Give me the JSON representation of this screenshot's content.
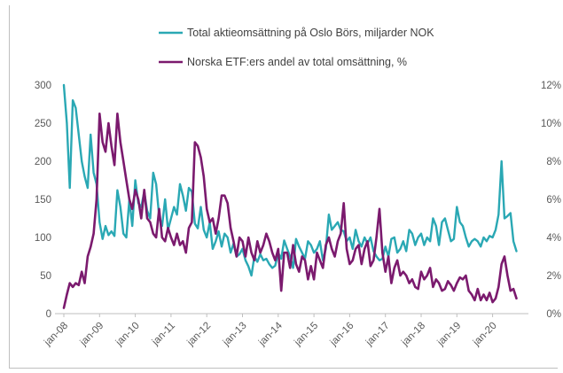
{
  "chart_data": {
    "type": "line",
    "title": "",
    "xlabel": "",
    "ylabel": "",
    "x_tick_labels": [
      "jan-08",
      "jan-09",
      "jan-10",
      "jan-11",
      "jan-12",
      "jan-13",
      "jan-14",
      "jan-15",
      "jan-16",
      "jan-17",
      "jan-18",
      "jan-19",
      "jan-20"
    ],
    "x_range": [
      "2008-01",
      "2020-08"
    ],
    "y_left": {
      "ticks": [
        "0",
        "50",
        "100",
        "150",
        "200",
        "250",
        "300"
      ],
      "ylim": [
        0,
        300
      ]
    },
    "y_right": {
      "ticks": [
        "0%",
        "2%",
        "4%",
        "6%",
        "8%",
        "10%",
        "12%"
      ],
      "ylim": [
        0,
        12
      ]
    },
    "grid": false,
    "legend_position": "top",
    "series": [
      {
        "name": "Total aktieomsättning på Oslo Börs, miljarder NOK",
        "axis": "left",
        "color": "#2aa8b4",
        "x_start": "2008-01",
        "values": [
          300,
          250,
          165,
          280,
          270,
          235,
          200,
          180,
          165,
          235,
          185,
          170,
          120,
          98,
          115,
          103,
          108,
          102,
          162,
          140,
          105,
          100,
          150,
          115,
          175,
          145,
          140,
          160,
          135,
          125,
          185,
          170,
          128,
          115,
          150,
          110,
          125,
          140,
          130,
          170,
          155,
          135,
          165,
          160,
          118,
          112,
          140,
          110,
          100,
          120,
          85,
          95,
          108,
          88,
          105,
          100,
          80,
          92,
          75,
          78,
          85,
          70,
          62,
          50,
          75,
          68,
          78,
          70,
          72,
          65,
          60,
          63,
          80,
          72,
          96,
          85,
          75,
          60,
          98,
          88,
          80,
          72,
          95,
          90,
          80,
          85,
          95,
          70,
          85,
          130,
          110,
          115,
          120,
          110,
          108,
          95,
          100,
          85,
          110,
          95,
          88,
          100,
          92,
          100,
          82,
          75,
          70,
          72,
          88,
          75,
          98,
          100,
          80,
          85,
          95,
          82,
          110,
          105,
          90,
          100,
          105,
          90,
          100,
          95,
          125,
          115,
          90,
          120,
          125,
          110,
          95,
          98,
          140,
          120,
          115,
          100,
          88,
          95,
          98,
          95,
          88,
          100,
          95,
          102,
          100,
          110,
          130,
          200,
          125,
          128,
          132,
          95,
          82
        ]
      },
      {
        "name": "Norska ETF:ers andel av total omsättning, %",
        "axis": "right",
        "color": "#7b1a6e",
        "x_start": "2008-01",
        "values": [
          0.3,
          1.0,
          1.6,
          1.4,
          1.6,
          1.5,
          2.2,
          1.6,
          3.0,
          3.5,
          4.2,
          6.0,
          10.5,
          9.0,
          8.5,
          10.0,
          8.8,
          7.8,
          10.5,
          9.0,
          8.0,
          7.0,
          6.0,
          5.5,
          6.5,
          6.0,
          5.0,
          6.5,
          5.0,
          4.8,
          4.2,
          4.0,
          5.5,
          4.0,
          3.8,
          4.5,
          4.0,
          3.6,
          4.2,
          3.6,
          3.8,
          3.2,
          4.5,
          4.8,
          9.0,
          8.8,
          8.2,
          7.2,
          5.5,
          4.8,
          5.0,
          4.2,
          5.0,
          6.2,
          6.2,
          5.8,
          4.5,
          3.8,
          3.0,
          4.0,
          3.8,
          3.0,
          4.0,
          3.2,
          2.8,
          3.8,
          3.2,
          3.6,
          4.2,
          3.8,
          3.2,
          2.8,
          3.4,
          1.2,
          3.2,
          3.2,
          2.4,
          3.6,
          2.6,
          2.2,
          3.0,
          2.8,
          1.8,
          2.5,
          1.8,
          3.2,
          2.8,
          2.4,
          3.6,
          4.0,
          3.4,
          3.0,
          3.8,
          4.2,
          5.8,
          3.4,
          2.6,
          2.8,
          3.4,
          3.6,
          2.6,
          3.4,
          3.8,
          2.5,
          2.8,
          4.0,
          5.5,
          3.2,
          2.2,
          3.0,
          1.6,
          2.4,
          2.8,
          2.0,
          2.2,
          2.0,
          1.6,
          1.8,
          1.4,
          1.3,
          2.2,
          1.8,
          2.0,
          2.4,
          1.4,
          1.8,
          1.6,
          1.2,
          1.3,
          1.7,
          1.5,
          1.2,
          1.6,
          1.9,
          1.8,
          2.0,
          1.2,
          1.0,
          0.7,
          1.3,
          0.7,
          1.0,
          0.7,
          1.1,
          0.6,
          0.8,
          1.4,
          2.6,
          3.0,
          2.0,
          1.2,
          1.3,
          0.8
        ]
      }
    ]
  }
}
